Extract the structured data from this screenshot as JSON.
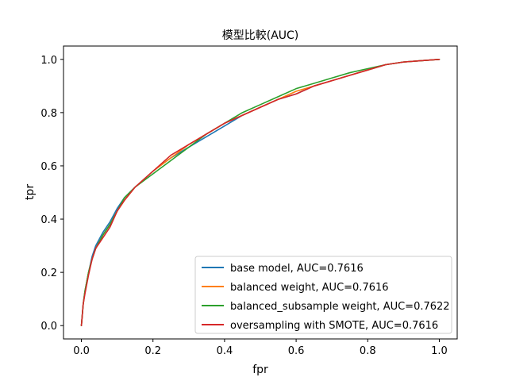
{
  "chart_data": {
    "type": "line",
    "title": "模型比較(AUC)",
    "xlabel": "fpr",
    "ylabel": "tpr",
    "xlim": [
      -0.05,
      1.05
    ],
    "ylim": [
      -0.05,
      1.05
    ],
    "x_ticks": [
      0.0,
      0.2,
      0.4,
      0.6,
      0.8,
      1.0
    ],
    "y_ticks": [
      0.0,
      0.2,
      0.4,
      0.6,
      0.8,
      1.0
    ],
    "x_tick_labels": [
      "0.0",
      "0.2",
      "0.4",
      "0.6",
      "0.8",
      "1.0"
    ],
    "y_tick_labels": [
      "0.0",
      "0.2",
      "0.4",
      "0.6",
      "0.8",
      "1.0"
    ],
    "grid": false,
    "legend_position": "lower-right",
    "series": [
      {
        "name": "base model, AUC=0.7616",
        "color": "#1f77b4",
        "x": [
          0,
          0.005,
          0.01,
          0.02,
          0.03,
          0.04,
          0.06,
          0.08,
          0.1,
          0.12,
          0.15,
          0.2,
          0.25,
          0.3,
          0.35,
          0.4,
          0.45,
          0.5,
          0.55,
          0.6,
          0.65,
          0.7,
          0.75,
          0.8,
          0.85,
          0.9,
          0.95,
          1.0
        ],
        "y": [
          0,
          0.08,
          0.13,
          0.2,
          0.26,
          0.3,
          0.35,
          0.39,
          0.44,
          0.48,
          0.52,
          0.58,
          0.63,
          0.67,
          0.71,
          0.75,
          0.79,
          0.82,
          0.85,
          0.87,
          0.9,
          0.92,
          0.94,
          0.96,
          0.98,
          0.99,
          0.995,
          1.0
        ]
      },
      {
        "name": "balanced weight, AUC=0.7616",
        "color": "#ff7f0e",
        "x": [
          0,
          0.005,
          0.01,
          0.02,
          0.03,
          0.04,
          0.06,
          0.08,
          0.1,
          0.12,
          0.15,
          0.2,
          0.25,
          0.3,
          0.35,
          0.4,
          0.45,
          0.5,
          0.55,
          0.6,
          0.65,
          0.7,
          0.75,
          0.8,
          0.85,
          0.9,
          0.95,
          1.0
        ],
        "y": [
          0,
          0.08,
          0.13,
          0.2,
          0.25,
          0.29,
          0.34,
          0.38,
          0.43,
          0.47,
          0.52,
          0.58,
          0.63,
          0.68,
          0.72,
          0.76,
          0.79,
          0.82,
          0.85,
          0.88,
          0.9,
          0.92,
          0.94,
          0.96,
          0.98,
          0.99,
          0.995,
          1.0
        ]
      },
      {
        "name": "balanced_subsample weight, AUC=0.7622",
        "color": "#2ca02c",
        "x": [
          0,
          0.005,
          0.01,
          0.02,
          0.03,
          0.04,
          0.06,
          0.08,
          0.1,
          0.12,
          0.15,
          0.2,
          0.25,
          0.3,
          0.35,
          0.4,
          0.45,
          0.5,
          0.55,
          0.6,
          0.65,
          0.7,
          0.75,
          0.8,
          0.85,
          0.9,
          0.95,
          1.0
        ],
        "y": [
          0,
          0.08,
          0.13,
          0.2,
          0.25,
          0.29,
          0.34,
          0.38,
          0.43,
          0.48,
          0.52,
          0.57,
          0.62,
          0.67,
          0.72,
          0.76,
          0.8,
          0.83,
          0.86,
          0.89,
          0.91,
          0.93,
          0.95,
          0.965,
          0.98,
          0.99,
          0.995,
          1.0
        ]
      },
      {
        "name": "oversampling with SMOTE, AUC=0.7616",
        "color": "#d62728",
        "x": [
          0,
          0.005,
          0.01,
          0.02,
          0.03,
          0.04,
          0.06,
          0.08,
          0.1,
          0.12,
          0.15,
          0.2,
          0.25,
          0.3,
          0.35,
          0.4,
          0.45,
          0.5,
          0.55,
          0.6,
          0.65,
          0.7,
          0.75,
          0.8,
          0.85,
          0.9,
          0.95,
          1.0
        ],
        "y": [
          0,
          0.08,
          0.12,
          0.19,
          0.25,
          0.29,
          0.33,
          0.37,
          0.43,
          0.47,
          0.52,
          0.58,
          0.64,
          0.68,
          0.72,
          0.76,
          0.79,
          0.82,
          0.85,
          0.87,
          0.9,
          0.92,
          0.94,
          0.96,
          0.98,
          0.99,
          0.995,
          1.0
        ]
      }
    ]
  }
}
